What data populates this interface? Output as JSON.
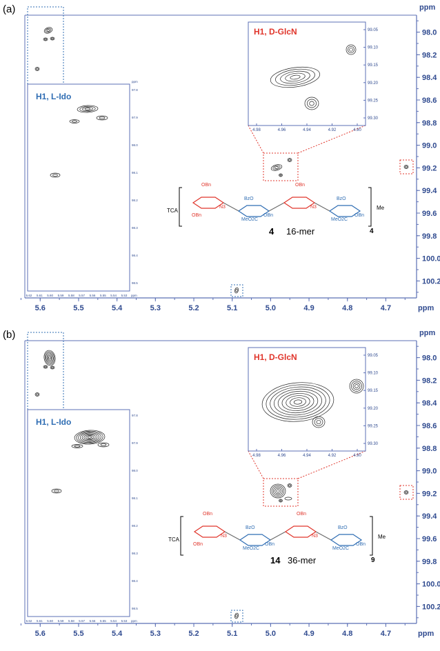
{
  "chart_data": [
    {
      "type": "heatmap",
      "panel_label": "(a)",
      "x_axis": {
        "label": "ppm",
        "ticks": [
          "5.6",
          "5.5",
          "5.4",
          "5.3",
          "5.2",
          "5.1",
          "5.0",
          "4.9",
          "4.8",
          "4.7"
        ],
        "range": [
          5.64,
          4.62
        ]
      },
      "y_axis": {
        "label": "ppm",
        "ticks": [
          "98.0",
          "98.2",
          "98.4",
          "98.6",
          "98.8",
          "99.0",
          "99.2",
          "99.4",
          "99.6",
          "99.8",
          "100.0",
          "100.2"
        ],
        "range": [
          97.85,
          100.35
        ]
      },
      "peaks": [
        {
          "x": 5.56,
          "y": 97.88
        },
        {
          "x": 5.55,
          "y": 97.95
        },
        {
          "x": 5.57,
          "y": 97.97
        },
        {
          "x": 5.59,
          "y": 98.25
        },
        {
          "x": 4.94,
          "y": 99.17
        },
        {
          "x": 4.92,
          "y": 99.15
        },
        {
          "x": 4.94,
          "y": 99.23
        },
        {
          "x": 4.66,
          "y": 99.16
        },
        {
          "x": 5.06,
          "y": 100.27
        }
      ],
      "inset_ido": {
        "title": "H1, L-Ido",
        "x_label": "ppm",
        "x_ticks": [
          "5.62",
          "5.61",
          "5.60",
          "5.59",
          "5.58",
          "5.57",
          "5.56",
          "5.55",
          "5.54",
          "5.53"
        ],
        "y_label": "ppm",
        "y_ticks": [
          "97.8",
          "97.9",
          "98.0",
          "98.1",
          "98.2",
          "98.3",
          "98.4",
          "98.5"
        ]
      },
      "inset_glcn": {
        "title": "H1, D-GlcN",
        "x_ticks": [
          "4.98",
          "4.96",
          "4.94",
          "4.92",
          "4.90"
        ],
        "y_ticks": [
          "99.05",
          "99.10",
          "99.15",
          "99.20",
          "99.25",
          "99.30"
        ]
      },
      "structure": {
        "tca": "TCA",
        "groups": [
          "OBn",
          "OBn",
          "N3",
          "BzO",
          "MeO2C",
          "OBn",
          "OBn",
          "N3",
          "BzO",
          "MeO2C",
          "OBn",
          "Me"
        ],
        "repeat": "4",
        "compound": "4",
        "mer": "16-mer"
      }
    },
    {
      "type": "heatmap",
      "panel_label": "(b)",
      "x_axis": {
        "label": "ppm",
        "ticks": [
          "5.6",
          "5.5",
          "5.4",
          "5.3",
          "5.2",
          "5.1",
          "5.0",
          "4.9",
          "4.8",
          "4.7"
        ],
        "range": [
          5.64,
          4.62
        ]
      },
      "y_axis": {
        "label": "ppm",
        "ticks": [
          "98.0",
          "98.2",
          "98.4",
          "98.6",
          "98.8",
          "99.0",
          "99.2",
          "99.4",
          "99.6",
          "99.8",
          "100.0",
          "100.2"
        ],
        "range": [
          97.85,
          100.35
        ]
      },
      "peaks": [
        {
          "x": 5.56,
          "y": 97.9
        },
        {
          "x": 5.57,
          "y": 98.02
        },
        {
          "x": 5.59,
          "y": 98.25
        },
        {
          "x": 4.94,
          "y": 99.18
        },
        {
          "x": 4.92,
          "y": 99.15
        },
        {
          "x": 4.94,
          "y": 99.22
        },
        {
          "x": 4.66,
          "y": 99.16
        },
        {
          "x": 5.06,
          "y": 100.27
        }
      ],
      "inset_ido": {
        "title": "H1, L-Ido",
        "x_label": "ppm",
        "x_ticks": [
          "5.62",
          "5.61",
          "5.60",
          "5.59",
          "5.58",
          "5.57",
          "5.56",
          "5.55",
          "5.54",
          "5.53"
        ],
        "y_ticks": [
          "97.8",
          "97.9",
          "98.0",
          "98.1",
          "98.2",
          "98.3",
          "98.4",
          "98.5"
        ]
      },
      "inset_glcn": {
        "title": "H1, D-GlcN",
        "x_ticks": [
          "4.98",
          "4.96",
          "4.94",
          "4.92",
          "4.90"
        ],
        "y_ticks": [
          "99.05",
          "99.10",
          "99.15",
          "99.20",
          "99.25",
          "99.30"
        ]
      },
      "structure": {
        "tca": "TCA",
        "groups": [
          "OBn",
          "OBn",
          "N3",
          "BzO",
          "MeO2C",
          "OBn",
          "OBn",
          "N3",
          "BzO",
          "MeO2C",
          "OBn",
          "Me"
        ],
        "repeat": "9",
        "compound": "14",
        "mer": "36-mer"
      }
    }
  ],
  "colors": {
    "axis": "#2f4a8f",
    "frame": "#5b6fb5",
    "red": "#e0352b",
    "blue": "#2f6db3",
    "contour": "#222222"
  }
}
